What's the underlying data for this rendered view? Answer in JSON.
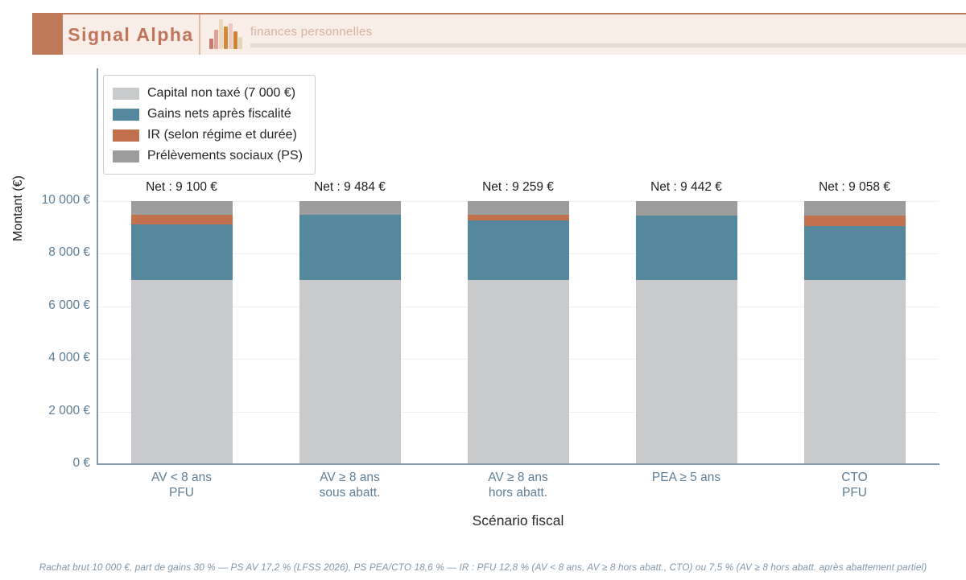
{
  "header": {
    "brand": "Signal Alpha",
    "tagline": "finances personnelles",
    "accent_color": "#bf7a5a",
    "logo_bars": [
      {
        "h": 13,
        "c": "#c77a6d"
      },
      {
        "h": 24,
        "c": "#dfa096"
      },
      {
        "h": 37,
        "c": "#ead9bd"
      },
      {
        "h": 28,
        "c": "#d28a3a"
      },
      {
        "h": 32,
        "c": "#ecc9c2"
      },
      {
        "h": 22,
        "c": "#cf8430"
      },
      {
        "h": 15,
        "c": "#e3d5ba"
      }
    ]
  },
  "chart_data": {
    "type": "bar",
    "stacked": true,
    "xlabel": "Scénario fiscal",
    "ylabel": "Montant (€)",
    "ylim": [
      0,
      10000
    ],
    "grid": true,
    "legend_position": "upper left",
    "y_ticks": [
      {
        "value": 0,
        "label": "0 €"
      },
      {
        "value": 2000,
        "label": "2 000 €"
      },
      {
        "value": 4000,
        "label": "4 000 €"
      },
      {
        "value": 6000,
        "label": "6 000 €"
      },
      {
        "value": 8000,
        "label": "8 000 €"
      },
      {
        "value": 10000,
        "label": "10 000 €"
      }
    ],
    "categories": [
      [
        "AV < 8 ans",
        "PFU"
      ],
      [
        "AV ≥ 8 ans",
        "sous abatt."
      ],
      [
        "AV ≥ 8 ans",
        "hors abatt."
      ],
      [
        "PEA ≥ 5 ans"
      ],
      [
        "CTO",
        "PFU"
      ]
    ],
    "series": [
      {
        "name": "Capital non taxé (7 000 €)",
        "color": "#c9cacb",
        "values": [
          7000,
          7000,
          7000,
          7000,
          7000
        ]
      },
      {
        "name": "Gains nets après fiscalité",
        "color": "#55889c",
        "values": [
          2100,
          2484,
          2259,
          2442,
          2058
        ]
      },
      {
        "name": "IR (selon régime et durée)",
        "color": "#c1714e",
        "values": [
          384,
          0,
          225,
          0,
          384
        ]
      },
      {
        "name": "Prélèvements sociaux (PS)",
        "color": "#9c9c9c",
        "values": [
          516,
          516,
          516,
          558,
          558
        ]
      }
    ],
    "bar_labels": [
      "Net : 9 100 €",
      "Net : 9 484 €",
      "Net : 9 259 €",
      "Net : 9 442 €",
      "Net : 9 058 €"
    ]
  },
  "footnote": "Rachat brut 10 000 €, part de gains 30 % — PS AV 17,2 % (LFSS 2026), PS PEA/CTO 18,6 % — IR : PFU 12,8 % (AV < 8 ans, AV ≥ 8 hors abatt., CTO) ou 7,5 % (AV ≥ 8 hors abatt. après abattement partiel)"
}
